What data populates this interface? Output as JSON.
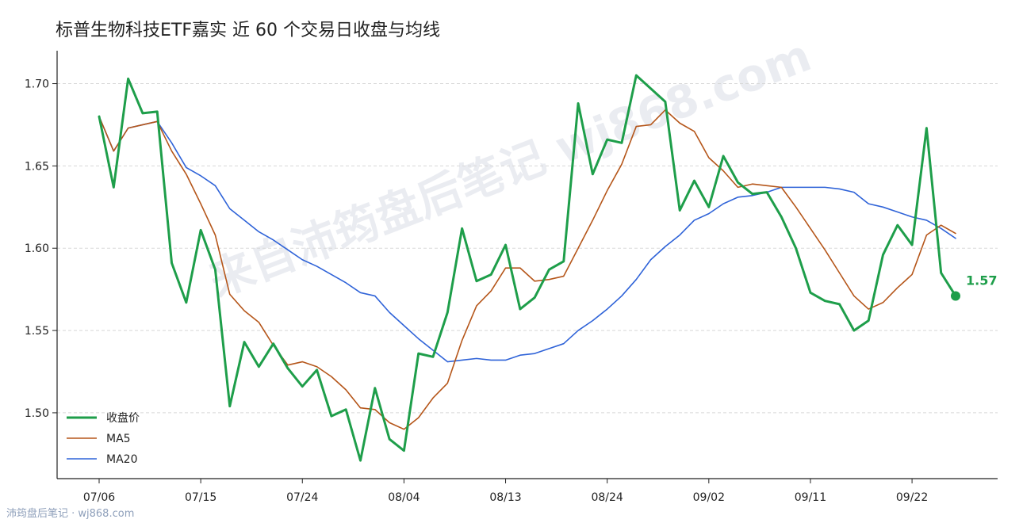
{
  "chart_data": {
    "type": "line",
    "title": "标普生物科技ETF嘉实 近 60 个交易日收盘与均线",
    "xlabel": "",
    "ylabel": "",
    "ylim": [
      1.46,
      1.72
    ],
    "yticks": [
      1.5,
      1.55,
      1.6,
      1.65,
      1.7
    ],
    "ytick_labels": [
      "1.50",
      "1.55",
      "1.60",
      "1.65",
      "1.70"
    ],
    "x_tick_labels": [
      "07/06",
      "07/15",
      "07/24",
      "08/04",
      "08/13",
      "08/24",
      "09/02",
      "09/11",
      "09/22"
    ],
    "x_tick_indices": [
      0,
      7,
      14,
      21,
      28,
      35,
      42,
      49,
      56
    ],
    "grid": "y",
    "legend_position": "bottom-left",
    "last_value_label": "1.57",
    "series": [
      {
        "name": "收盘价",
        "color": "#1e9e4a",
        "values": [
          1.68,
          1.637,
          1.703,
          1.682,
          1.683,
          1.591,
          1.567,
          1.611,
          1.587,
          1.504,
          1.543,
          1.528,
          1.542,
          1.527,
          1.516,
          1.526,
          1.498,
          1.502,
          1.471,
          1.515,
          1.484,
          1.477,
          1.536,
          1.534,
          1.561,
          1.612,
          1.58,
          1.584,
          1.602,
          1.563,
          1.57,
          1.587,
          1.592,
          1.688,
          1.645,
          1.666,
          1.664,
          1.705,
          1.697,
          1.689,
          1.623,
          1.641,
          1.625,
          1.656,
          1.64,
          1.633,
          1.634,
          1.619,
          1.6,
          1.573,
          1.568,
          1.566,
          1.55,
          1.556,
          1.596,
          1.614,
          1.602,
          1.673,
          1.585,
          1.571
        ]
      },
      {
        "name": "MA5",
        "color": "#b5561a",
        "values": [
          1.68,
          1.659,
          1.673,
          1.675,
          1.677,
          1.659,
          1.645,
          1.627,
          1.608,
          1.572,
          1.562,
          1.555,
          1.541,
          1.529,
          1.531,
          1.528,
          1.522,
          1.514,
          1.503,
          1.502,
          1.494,
          1.49,
          1.497,
          1.509,
          1.518,
          1.544,
          1.565,
          1.574,
          1.588,
          1.588,
          1.58,
          1.581,
          1.583,
          1.6,
          1.617,
          1.635,
          1.651,
          1.674,
          1.675,
          1.684,
          1.676,
          1.671,
          1.655,
          1.647,
          1.637,
          1.639,
          1.638,
          1.637,
          1.625,
          1.612,
          1.599,
          1.585,
          1.571,
          1.563,
          1.567,
          1.576,
          1.584,
          1.608,
          1.614,
          1.609
        ]
      },
      {
        "name": "MA20",
        "color": "#2f63d8",
        "values": [
          1.68,
          1.659,
          1.673,
          1.675,
          1.677,
          1.664,
          1.649,
          1.644,
          1.638,
          1.624,
          1.617,
          1.61,
          1.605,
          1.599,
          1.593,
          1.589,
          1.584,
          1.579,
          1.573,
          1.571,
          1.561,
          1.553,
          1.545,
          1.538,
          1.531,
          1.532,
          1.533,
          1.532,
          1.532,
          1.535,
          1.536,
          1.539,
          1.542,
          1.55,
          1.556,
          1.563,
          1.571,
          1.581,
          1.593,
          1.601,
          1.608,
          1.617,
          1.621,
          1.627,
          1.631,
          1.632,
          1.634,
          1.637,
          1.637,
          1.637,
          1.637,
          1.636,
          1.634,
          1.627,
          1.625,
          1.622,
          1.619,
          1.617,
          1.612,
          1.606
        ]
      }
    ]
  },
  "watermark_text": "来自沛筠盘后笔记 wj868.com",
  "footer_text": "沛筠盘后笔记 · wj868.com"
}
